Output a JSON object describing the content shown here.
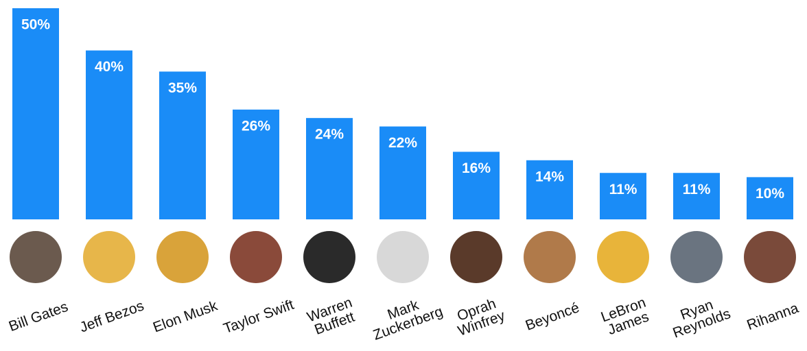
{
  "chart_data": {
    "type": "bar",
    "categories": [
      "Bill Gates",
      "Jeff Bezos",
      "Elon Musk",
      "Taylor Swift",
      "Warren Buffett",
      "Mark Zuckerberg",
      "Oprah Winfrey",
      "Beyoncé",
      "LeBron James",
      "Ryan Reynolds",
      "Rihanna"
    ],
    "values": [
      50,
      40,
      35,
      26,
      24,
      22,
      16,
      14,
      11,
      11,
      10
    ],
    "value_labels": [
      "50%",
      "40%",
      "35%",
      "26%",
      "24%",
      "22%",
      "16%",
      "14%",
      "11%",
      "11%",
      "10%"
    ],
    "color": "#1a8cf7",
    "ylim": [
      0,
      50
    ]
  }
}
